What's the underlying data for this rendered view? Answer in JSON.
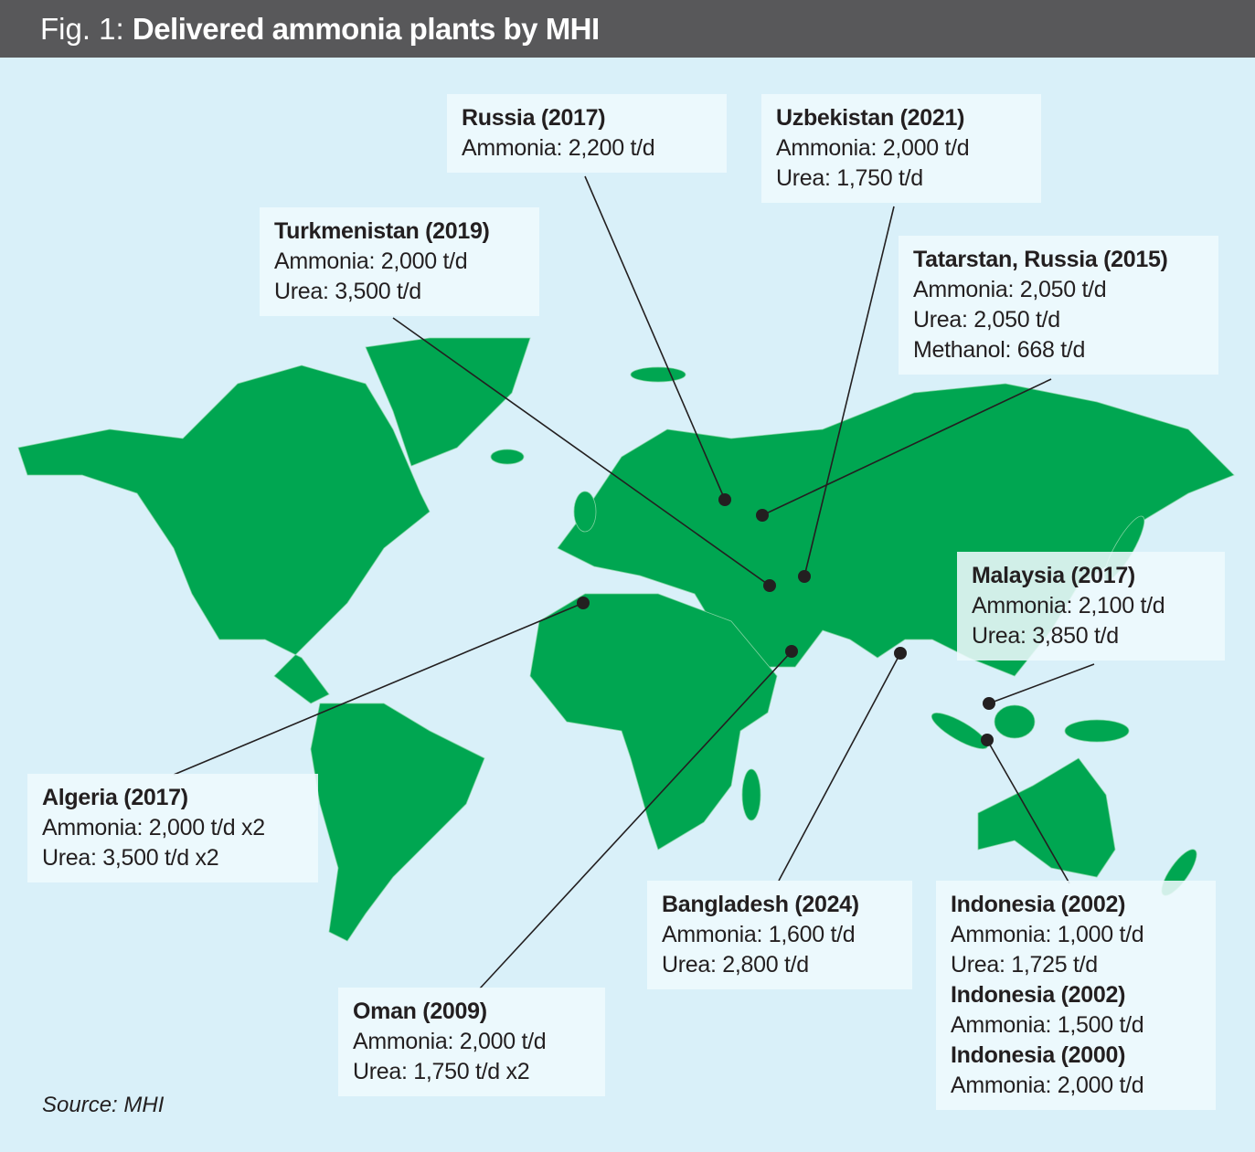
{
  "header": {
    "prefix": "Fig. 1:",
    "title": "Delivered ammonia plants by MHI"
  },
  "callouts": [
    {
      "entries": [
        {
          "title": "Russia (2017)",
          "lines": [
            "Ammonia: 2,200 t/d"
          ]
        }
      ]
    },
    {
      "entries": [
        {
          "title": "Uzbekistan (2021)",
          "lines": [
            "Ammonia: 2,000 t/d",
            "Urea: 1,750 t/d"
          ]
        }
      ]
    },
    {
      "entries": [
        {
          "title": "Turkmenistan (2019)",
          "lines": [
            "Ammonia: 2,000 t/d",
            "Urea: 3,500 t/d"
          ]
        }
      ]
    },
    {
      "entries": [
        {
          "title": "Tatarstan, Russia (2015)",
          "lines": [
            "Ammonia: 2,050 t/d",
            "Urea: 2,050 t/d",
            "Methanol: 668 t/d"
          ]
        }
      ]
    },
    {
      "entries": [
        {
          "title": "Malaysia (2017)",
          "lines": [
            "Ammonia: 2,100 t/d",
            "Urea: 3,850 t/d"
          ]
        }
      ]
    },
    {
      "entries": [
        {
          "title": "Algeria (2017)",
          "lines": [
            "Ammonia: 2,000 t/d x2",
            "Urea: 3,500 t/d x2"
          ]
        }
      ]
    },
    {
      "entries": [
        {
          "title": "Bangladesh (2024)",
          "lines": [
            "Ammonia: 1,600 t/d",
            "Urea: 2,800 t/d"
          ]
        }
      ]
    },
    {
      "entries": [
        {
          "title": "Indonesia (2002)",
          "lines": [
            "Ammonia: 1,000 t/d",
            "Urea: 1,725 t/d"
          ]
        },
        {
          "title": "Indonesia (2002)",
          "lines": [
            "Ammonia: 1,500 t/d"
          ]
        },
        {
          "title": "Indonesia (2000)",
          "lines": [
            "Ammonia: 2,000 t/d"
          ]
        }
      ]
    },
    {
      "entries": [
        {
          "title": "Oman (2009)",
          "lines": [
            "Ammonia: 2,000 t/d",
            "Urea: 1,750 t/d x2"
          ]
        }
      ]
    }
  ],
  "source": "Source: MHI"
}
